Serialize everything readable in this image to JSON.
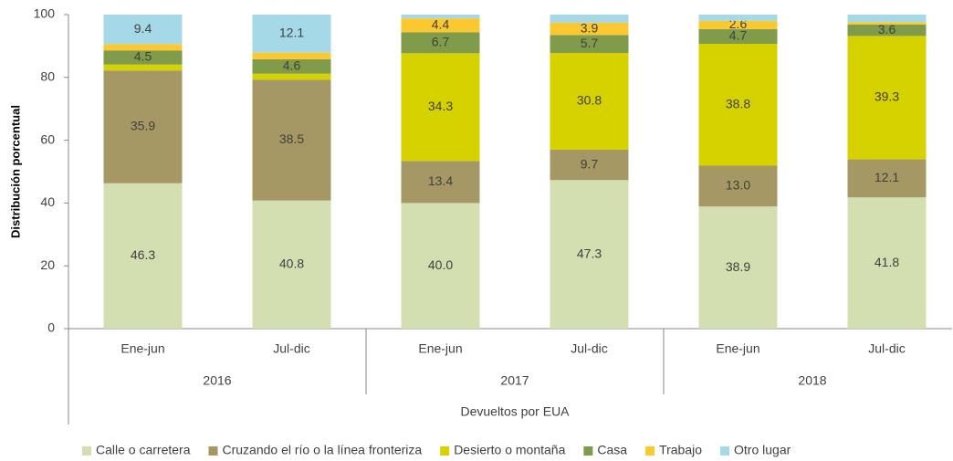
{
  "chart_data": {
    "type": "stacked_bar",
    "y_label": "Distribución porcentual",
    "x_label": "Devueltos por EUA",
    "categories": [
      "Ene-jun",
      "Jul-dic",
      "Ene-jun",
      "Jul-dic",
      "Ene-jun",
      "Jul-dic"
    ],
    "groups": [
      "2016",
      "2017",
      "2018"
    ],
    "ylim": [
      0,
      100
    ],
    "yticks": [
      0,
      20,
      40,
      60,
      80,
      100
    ],
    "series": [
      {
        "name": "Calle o carretera",
        "color": "#d3dfb0",
        "values": [
          46.3,
          40.8,
          40.0,
          47.3,
          38.9,
          41.8
        ],
        "value_labels": [
          "46.3",
          "40.8",
          "40.0",
          "47.3",
          "38.9",
          "41.8"
        ]
      },
      {
        "name": "Cruzando el río o la línea fronteriza",
        "color": "#a59865",
        "values": [
          35.9,
          38.5,
          13.4,
          9.7,
          13.0,
          12.1
        ],
        "value_labels": [
          "35.9",
          "38.5",
          "13.4",
          "9.7",
          "13.0",
          "12.1"
        ]
      },
      {
        "name": "Desierto o montaña",
        "color": "#d5d200",
        "values": [
          1.9,
          1.9,
          34.3,
          30.8,
          38.8,
          39.3
        ],
        "value_labels": [
          null,
          null,
          "34.3",
          "30.8",
          "38.8",
          "39.3"
        ]
      },
      {
        "name": "Casa",
        "color": "#809b49",
        "values": [
          4.5,
          4.6,
          6.7,
          5.7,
          4.7,
          3.6
        ],
        "value_labels": [
          "4.5",
          "4.6",
          "6.7",
          "5.7",
          "4.7",
          "3.6"
        ]
      },
      {
        "name": "Trabajo",
        "color": "#fcc830",
        "values": [
          2.0,
          2.1,
          4.4,
          3.9,
          2.6,
          0.8
        ],
        "value_labels": [
          null,
          null,
          "4.4",
          "3.9",
          "2.6",
          null
        ]
      },
      {
        "name": "Otro lugar",
        "color": "#a6d9e7",
        "values": [
          9.4,
          12.1,
          1.2,
          2.6,
          2.0,
          2.4
        ],
        "value_labels": [
          "9.4",
          "12.1",
          null,
          null,
          null,
          null
        ]
      }
    ]
  }
}
